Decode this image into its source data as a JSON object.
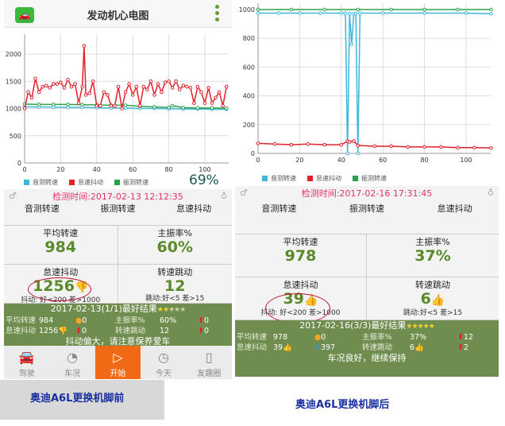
{
  "left": {
    "header": {
      "title": "发动机心电图",
      "icon": "car-app-icon",
      "menu_icon": "more-vertical-icon"
    },
    "overlay_text": "69%",
    "date": "检测时间:2017-02-13 12:12:35",
    "tabs": [
      "音测转速",
      "振测转速",
      "怠速抖动"
    ],
    "stats": [
      {
        "label": "平均转速",
        "value": "984"
      },
      {
        "label": "主振率%",
        "value": "60%"
      },
      {
        "label": "怠速抖动",
        "value": "1256",
        "icon": "thumbs-down-icon",
        "note": "抖动: 好<200 差>1000"
      },
      {
        "label": "转速跳动",
        "value": "12",
        "note": "跳动:好<5 差>15"
      }
    ],
    "best": {
      "title": "2017-02-13(1/1)最好结果",
      "stars": 5,
      "stars_lit": 2,
      "rows": [
        {
          "l1": "平均转速",
          "v1": "984",
          "d1": "0",
          "d1icon": "dot",
          "l2": "主振率%",
          "v2": "60%",
          "d2": "0",
          "d2icon": "up"
        },
        {
          "l1": "怠速抖动",
          "v1": "1256",
          "v1icon": "thumbs-down",
          "d1": "0",
          "d1icon": "up",
          "l2": "转速跳动",
          "v2": "12",
          "d2": "0",
          "d2icon": "up"
        }
      ],
      "message": "抖动偏大，请注意保养爱车"
    },
    "tabbar": [
      {
        "label": "驾驶",
        "icon": "car-icon"
      },
      {
        "label": "车况",
        "icon": "gauge-icon"
      },
      {
        "label": "开始",
        "icon": "play-icon",
        "active": true
      },
      {
        "label": "今天",
        "icon": "clock-icon"
      },
      {
        "label": "友趣圈",
        "icon": "book-icon"
      }
    ],
    "caption": "奥迪A6L更换机脚前"
  },
  "right": {
    "date": "检测时间:2017-02-16 17:31:45",
    "tabs": [
      "音测转速",
      "振测转速",
      "怠速抖动"
    ],
    "stats": [
      {
        "label": "平均转速",
        "value": "978"
      },
      {
        "label": "主振率%",
        "value": "37%"
      },
      {
        "label": "怠速抖动",
        "value": "39",
        "icon": "thumbs-up-icon",
        "note": "抖动: 好<200 差>1000"
      },
      {
        "label": "转速跳动",
        "value": "6",
        "icon": "thumbs-up-icon",
        "note": "跳动:好<5 差>15"
      }
    ],
    "best": {
      "title": "2017-02-16(3/3)最好结果",
      "stars": 5,
      "stars_lit": 5,
      "rows": [
        {
          "l1": "平均转速",
          "v1": "978",
          "d1": "0",
          "d1icon": "dot",
          "l2": "主振率%",
          "v2": "37%",
          "d2": "12",
          "d2icon": "down-red"
        },
        {
          "l1": "怠速抖动",
          "v1": "39",
          "v1icon": "thumbs-up",
          "d1": "397",
          "d1icon": "down-blue",
          "l2": "转速跳动",
          "v2": "6",
          "v2icon": "thumbs-up",
          "d2": "2",
          "d2icon": "up"
        }
      ],
      "message": "车况良好，继续保持"
    },
    "caption": "奥迪A6L更换机脚后"
  },
  "colors": {
    "blue": "#3fb6dc",
    "red": "#e3202a",
    "green": "#2ea24a",
    "accent": "#f06a16",
    "band": "#6f8d4f"
  },
  "chart_data": [
    {
      "type": "line",
      "xlim": [
        0,
        112
      ],
      "ylim": [
        0,
        2300
      ],
      "xticks": [
        0,
        20,
        40,
        60,
        80,
        100
      ],
      "yticks": [
        0,
        500,
        1000,
        1500,
        2000
      ],
      "grid": true,
      "legend": "bottom",
      "series": [
        {
          "name": "音测转速",
          "color": "#3fb6dc",
          "x": [
            0,
            8,
            16,
            24,
            32,
            40,
            48,
            56,
            64,
            72,
            80,
            88,
            96,
            104,
            112
          ],
          "y": [
            1030,
            1030,
            1025,
            1020,
            1020,
            1015,
            1010,
            1010,
            1000,
            1000,
            995,
            990,
            990,
            985,
            985
          ]
        },
        {
          "name": "怠速抖动",
          "color": "#e3202a",
          "x": [
            0,
            2,
            4,
            6,
            8,
            10,
            12,
            14,
            16,
            18,
            20,
            22,
            24,
            26,
            28,
            30,
            32,
            33,
            34,
            36,
            38,
            40,
            42,
            44,
            46,
            48,
            50,
            52,
            54,
            56,
            58,
            60,
            62,
            64,
            66,
            68,
            70,
            72,
            74,
            76,
            78,
            80,
            82,
            84,
            86,
            88,
            90,
            92,
            94,
            96,
            98,
            100,
            102,
            104,
            106,
            108,
            110,
            112
          ],
          "y": [
            1000,
            1300,
            1200,
            1550,
            1300,
            1400,
            1420,
            1380,
            1450,
            1450,
            1480,
            1380,
            1530,
            1400,
            1450,
            1100,
            1400,
            2150,
            1250,
            1280,
            1500,
            1050,
            1050,
            1300,
            1250,
            1050,
            1050,
            1400,
            1000,
            1300,
            1450,
            1250,
            1400,
            1050,
            1400,
            1350,
            1500,
            1250,
            1450,
            1300,
            1480,
            1500,
            1380,
            1500,
            1350,
            1420,
            1400,
            1380,
            1100,
            1400,
            1300,
            1100,
            1380,
            1100,
            1200,
            1300,
            1050,
            1400
          ]
        },
        {
          "name": "振测转速",
          "color": "#2ea24a",
          "x": [
            0,
            8,
            16,
            24,
            32,
            40,
            48,
            56,
            64,
            72,
            80,
            82,
            88,
            96,
            104,
            112
          ],
          "y": [
            1080,
            1075,
            1075,
            1075,
            1070,
            1065,
            1060,
            1060,
            1040,
            1030,
            1020,
            1050,
            1015,
            1010,
            1010,
            1005
          ]
        }
      ]
    },
    {
      "type": "line",
      "xlim": [
        0,
        112
      ],
      "ylim": [
        0,
        1000
      ],
      "xticks": [
        0,
        20,
        40,
        60,
        80,
        100
      ],
      "yticks": [
        0,
        200,
        400,
        600,
        800,
        1000
      ],
      "grid": true,
      "legend": "bottom",
      "series": [
        {
          "name": "音测转速",
          "color": "#3fb6dc",
          "x": [
            0,
            10,
            20,
            30,
            40,
            42,
            43,
            44,
            45,
            46,
            47,
            48,
            49,
            60,
            80,
            100,
            112
          ],
          "y": [
            975,
            975,
            975,
            975,
            975,
            975,
            0,
            970,
            760,
            970,
            970,
            0,
            975,
            975,
            975,
            975,
            970
          ]
        },
        {
          "name": "怠速抖动",
          "color": "#e3202a",
          "x": [
            0,
            8,
            16,
            24,
            32,
            40,
            43,
            44,
            46,
            48,
            56,
            64,
            72,
            80,
            88,
            96,
            104,
            112
          ],
          "y": [
            70,
            65,
            60,
            65,
            60,
            60,
            85,
            80,
            85,
            55,
            50,
            50,
            45,
            45,
            45,
            40,
            40,
            38
          ]
        },
        {
          "name": "振测转速",
          "color": "#2ea24a",
          "x": [
            0,
            16,
            32,
            48,
            64,
            80,
            96,
            112
          ],
          "y": [
            1000,
            1000,
            1000,
            1000,
            1000,
            1000,
            1000,
            1000
          ]
        }
      ]
    }
  ]
}
